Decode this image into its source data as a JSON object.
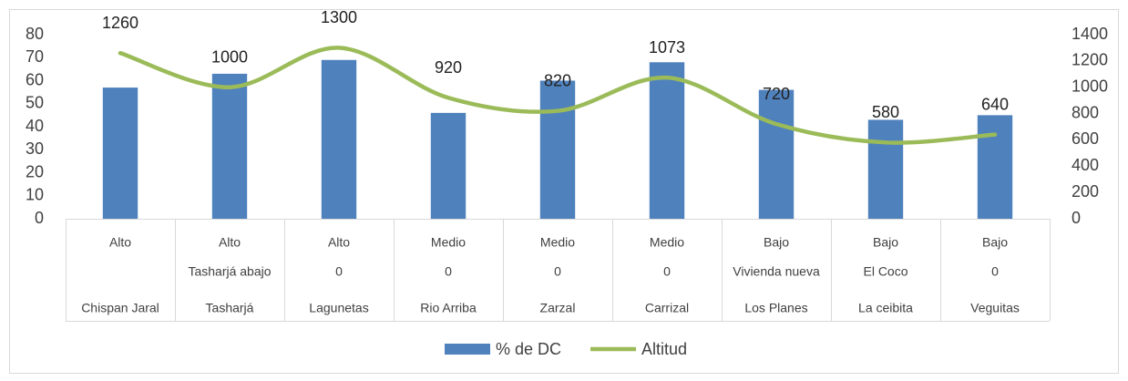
{
  "chart_data": {
    "type": "bar-line",
    "categories": [
      "Chispan Jaral",
      "Tasharjá",
      "Lagunetas",
      "Rio Arriba",
      "Zarzal",
      "Carrizal",
      "Los Planes",
      "La ceibita",
      "Veguitas"
    ],
    "categories_level2": [
      null,
      "Tasharjá abajo",
      "0",
      "0",
      "0",
      "0",
      "Vivienda nueva",
      "El Coco",
      "0"
    ],
    "categories_level1": [
      "Alto",
      "Alto",
      "Alto",
      "Medio",
      "Medio",
      "Medio",
      "Bajo",
      "Bajo",
      "Bajo"
    ],
    "series": [
      {
        "name": "% de DC",
        "color": "#4f81bd",
        "type": "bar",
        "values": [
          57,
          63,
          69,
          46,
          60,
          68,
          56,
          43,
          45
        ]
      },
      {
        "name": "Altitud",
        "color": "#9bbb59",
        "type": "line",
        "axis": "y2",
        "smooth": true,
        "data_labels": true,
        "values": [
          1260,
          1000,
          1300,
          920,
          820,
          1073,
          720,
          580,
          640
        ]
      }
    ],
    "ylim": [
      0,
      80
    ],
    "yticks": [
      0,
      10,
      20,
      30,
      40,
      50,
      60,
      70,
      80
    ],
    "y2lim": [
      0,
      1400
    ],
    "y2ticks": [
      0,
      200,
      400,
      600,
      800,
      1000,
      1200,
      1400
    ],
    "grid": false,
    "legend": "bottom"
  }
}
